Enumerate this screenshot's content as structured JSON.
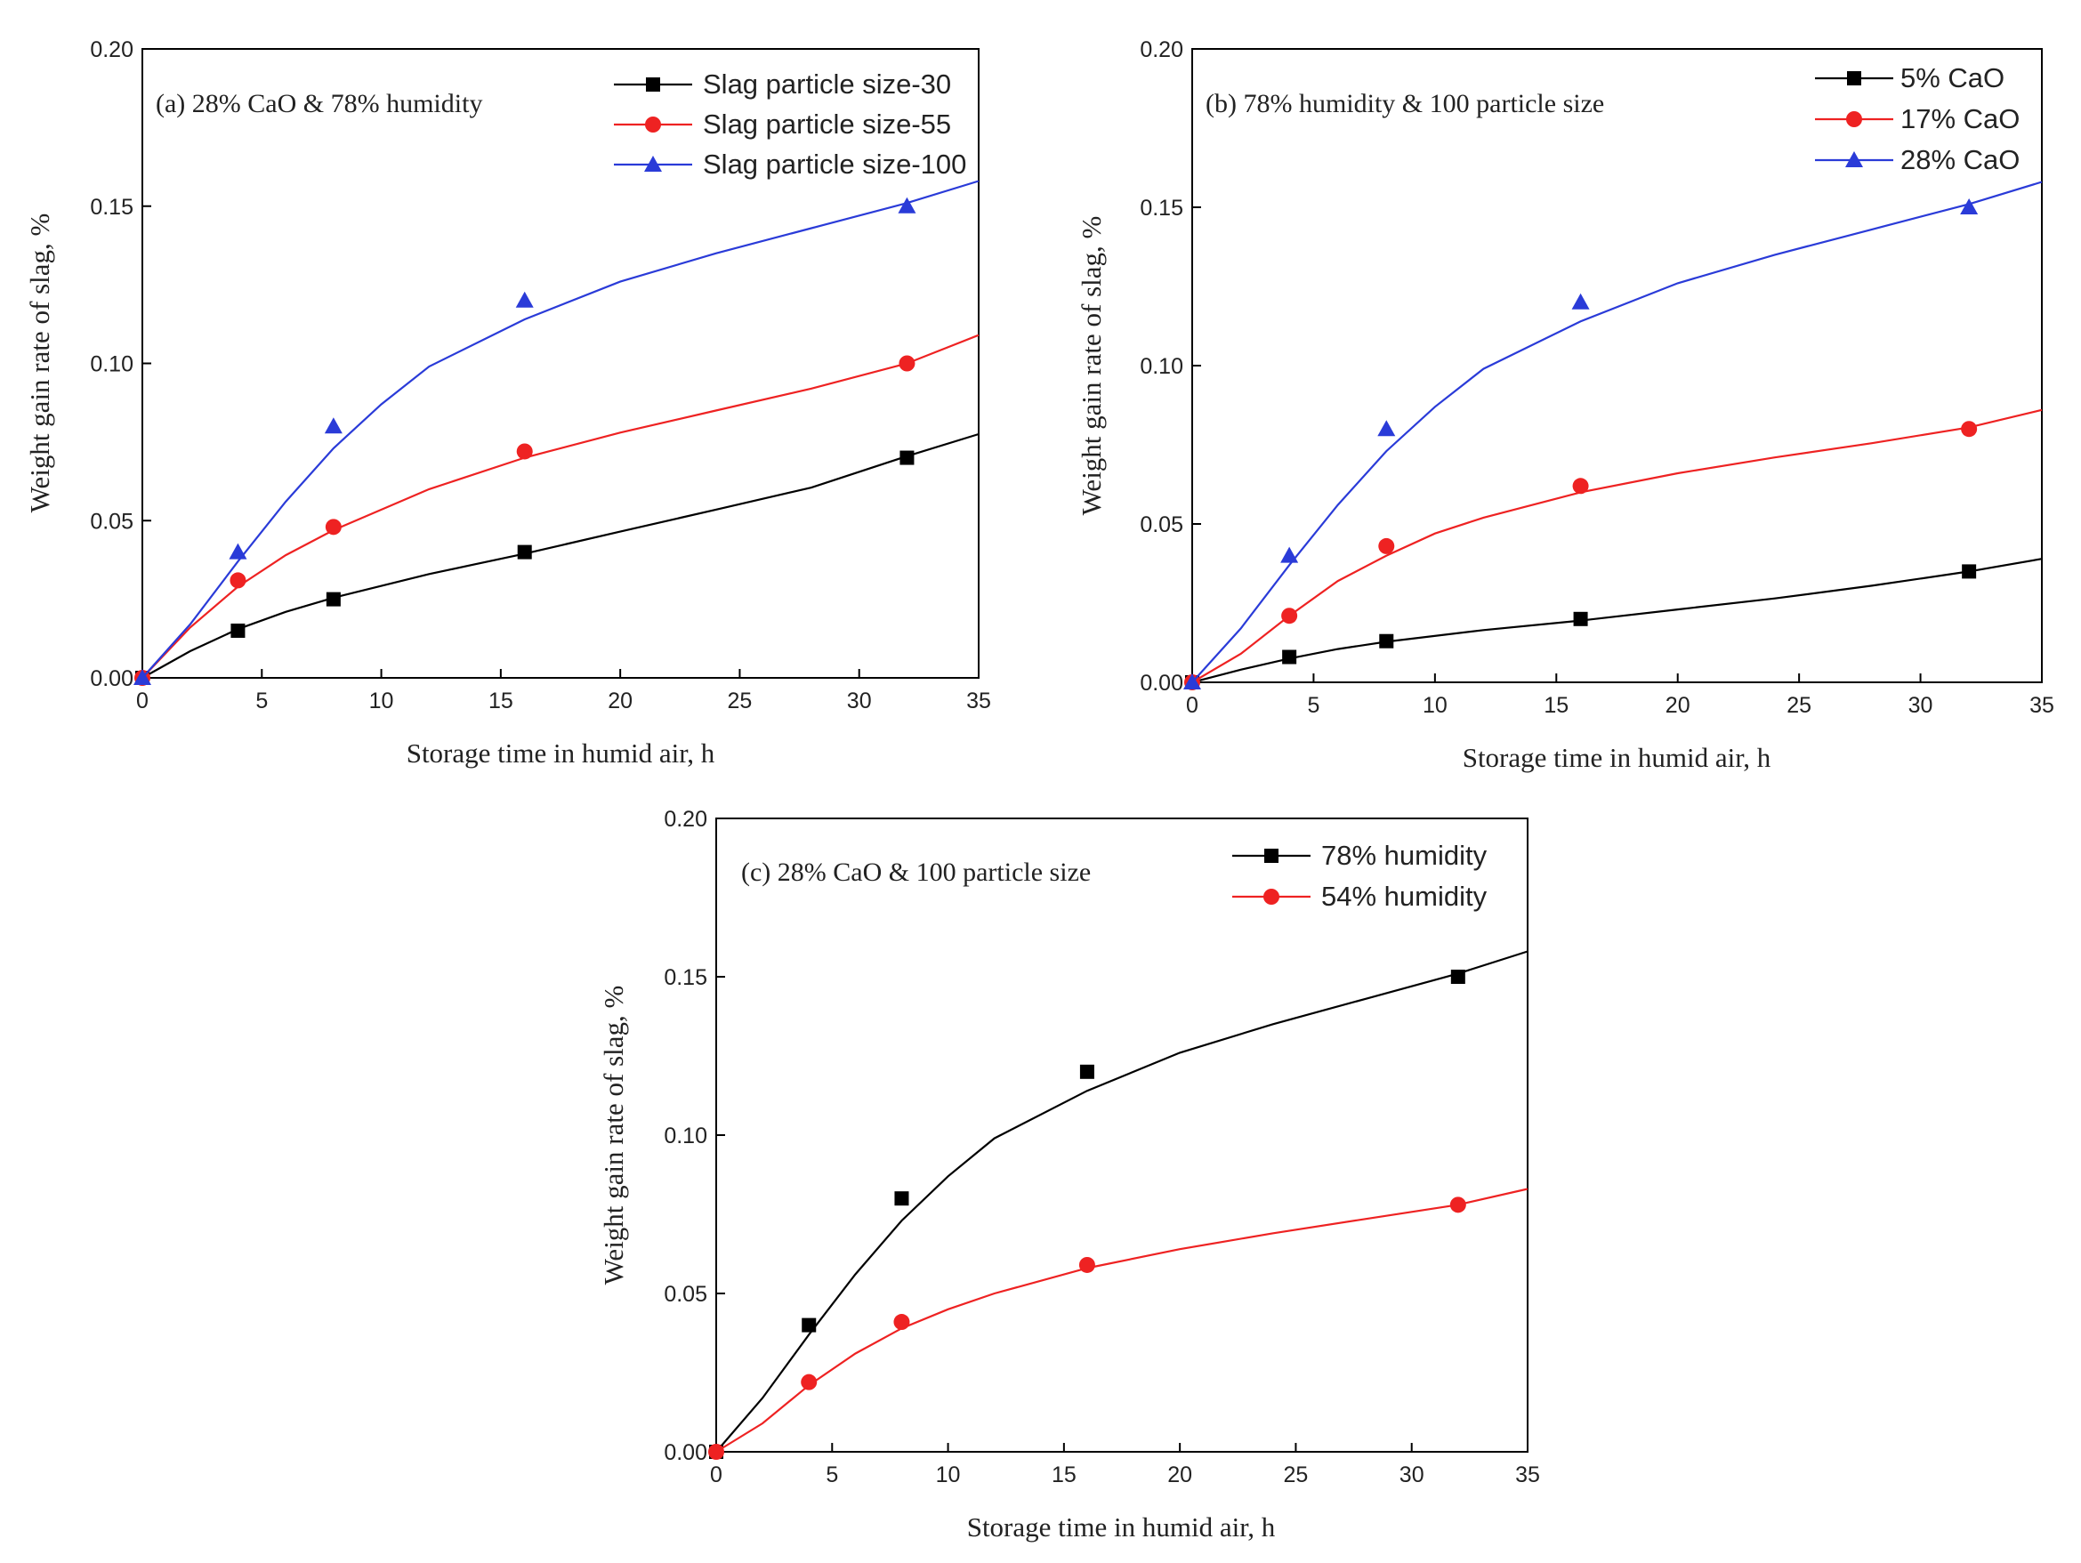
{
  "chart_data": [
    {
      "id": "a",
      "type": "line",
      "title": "(a) 28% CaO & 78% humidity",
      "xlabel": "Storage time in humid air, h",
      "ylabel": "Weight gain rate of slag, %",
      "xlim": [
        0,
        35
      ],
      "ylim": [
        0,
        0.2
      ],
      "xticks": [
        0,
        5,
        10,
        15,
        20,
        25,
        30,
        35
      ],
      "yticks": [
        0,
        0.05,
        0.1,
        0.15,
        0.2
      ],
      "x_tick_labels": [
        "0",
        "5",
        "10",
        "15",
        "20",
        "25",
        "30",
        "35"
      ],
      "y_tick_labels": [
        "0.00",
        "0.05",
        "0.10",
        "0.15",
        "0.20"
      ],
      "legend_position": "top-right",
      "series": [
        {
          "name": "Slag particle size-30",
          "color": "#000000",
          "marker": "square",
          "x": [
            0,
            4,
            8,
            16,
            32
          ],
          "values": [
            0,
            0.015,
            0.025,
            0.04,
            0.07
          ],
          "fit": [
            [
              0,
              0
            ],
            [
              2,
              0.0085
            ],
            [
              4,
              0.0155
            ],
            [
              6,
              0.021
            ],
            [
              8,
              0.0255
            ],
            [
              12,
              0.033
            ],
            [
              16,
              0.0395
            ],
            [
              20,
              0.0465
            ],
            [
              24,
              0.0535
            ],
            [
              28,
              0.0605
            ],
            [
              32,
              0.0705
            ],
            [
              35,
              0.0775
            ]
          ]
        },
        {
          "name": "Slag particle size-55",
          "color": "#ee2222",
          "marker": "circle",
          "x": [
            0,
            4,
            8,
            16,
            32
          ],
          "values": [
            0,
            0.031,
            0.048,
            0.072,
            0.1
          ],
          "fit": [
            [
              0,
              0
            ],
            [
              2,
              0.016
            ],
            [
              4,
              0.029
            ],
            [
              6,
              0.039
            ],
            [
              8,
              0.047
            ],
            [
              12,
              0.06
            ],
            [
              16,
              0.07
            ],
            [
              20,
              0.078
            ],
            [
              24,
              0.085
            ],
            [
              28,
              0.092
            ],
            [
              32,
              0.1
            ],
            [
              35,
              0.109
            ]
          ]
        },
        {
          "name": "Slag particle size-100",
          "color": "#2a3bd8",
          "marker": "triangle",
          "x": [
            0,
            4,
            8,
            16,
            32
          ],
          "values": [
            0,
            0.04,
            0.08,
            0.12,
            0.15
          ],
          "fit": [
            [
              0,
              0
            ],
            [
              2,
              0.017
            ],
            [
              4,
              0.037
            ],
            [
              6,
              0.056
            ],
            [
              8,
              0.073
            ],
            [
              10,
              0.087
            ],
            [
              12,
              0.099
            ],
            [
              16,
              0.114
            ],
            [
              20,
              0.126
            ],
            [
              24,
              0.135
            ],
            [
              28,
              0.143
            ],
            [
              32,
              0.151
            ],
            [
              35,
              0.158
            ]
          ]
        }
      ]
    },
    {
      "id": "b",
      "type": "line",
      "title": "(b) 78% humidity & 100 particle size",
      "xlabel": "Storage time in humid air, h",
      "ylabel": "Weight gain rate of slag, %",
      "xlim": [
        0,
        35
      ],
      "ylim": [
        0,
        0.2
      ],
      "xticks": [
        0,
        5,
        10,
        15,
        20,
        25,
        30,
        35
      ],
      "yticks": [
        0,
        0.05,
        0.1,
        0.15,
        0.2
      ],
      "x_tick_labels": [
        "0",
        "5",
        "10",
        "15",
        "20",
        "25",
        "30",
        "35"
      ],
      "y_tick_labels": [
        "0.00",
        "0.05",
        "0.10",
        "0.15",
        "0.20"
      ],
      "legend_position": "top-right",
      "series": [
        {
          "name": "5% CaO",
          "color": "#000000",
          "marker": "square",
          "x": [
            0,
            4,
            8,
            16,
            32
          ],
          "values": [
            0,
            0.008,
            0.013,
            0.02,
            0.035
          ],
          "fit": [
            [
              0,
              0
            ],
            [
              2,
              0.004
            ],
            [
              4,
              0.0075
            ],
            [
              6,
              0.0105
            ],
            [
              8,
              0.0128
            ],
            [
              12,
              0.0165
            ],
            [
              16,
              0.0195
            ],
            [
              20,
              0.023
            ],
            [
              24,
              0.0265
            ],
            [
              28,
              0.0305
            ],
            [
              32,
              0.035
            ],
            [
              35,
              0.039
            ]
          ]
        },
        {
          "name": "17% CaO",
          "color": "#ee2222",
          "marker": "circle",
          "x": [
            0,
            4,
            8,
            16,
            32
          ],
          "values": [
            0,
            0.021,
            0.043,
            0.062,
            0.08
          ],
          "fit": [
            [
              0,
              0
            ],
            [
              2,
              0.009
            ],
            [
              4,
              0.021
            ],
            [
              6,
              0.032
            ],
            [
              8,
              0.04
            ],
            [
              10,
              0.047
            ],
            [
              12,
              0.052
            ],
            [
              16,
              0.06
            ],
            [
              20,
              0.066
            ],
            [
              24,
              0.071
            ],
            [
              28,
              0.0755
            ],
            [
              32,
              0.0805
            ],
            [
              35,
              0.086
            ]
          ]
        },
        {
          "name": "28% CaO",
          "color": "#2a3bd8",
          "marker": "triangle",
          "x": [
            0,
            4,
            8,
            16,
            32
          ],
          "values": [
            0,
            0.04,
            0.08,
            0.12,
            0.15
          ],
          "fit": [
            [
              0,
              0
            ],
            [
              2,
              0.017
            ],
            [
              4,
              0.037
            ],
            [
              6,
              0.056
            ],
            [
              8,
              0.073
            ],
            [
              10,
              0.087
            ],
            [
              12,
              0.099
            ],
            [
              16,
              0.114
            ],
            [
              20,
              0.126
            ],
            [
              24,
              0.135
            ],
            [
              28,
              0.143
            ],
            [
              32,
              0.151
            ],
            [
              35,
              0.158
            ]
          ]
        }
      ]
    },
    {
      "id": "c",
      "type": "line",
      "title": "(c) 28% CaO & 100 particle size",
      "xlabel": "Storage time in humid air, h",
      "ylabel": "Weight gain rate of slag, %",
      "xlim": [
        0,
        35
      ],
      "ylim": [
        0,
        0.2
      ],
      "xticks": [
        0,
        5,
        10,
        15,
        20,
        25,
        30,
        35
      ],
      "yticks": [
        0,
        0.05,
        0.1,
        0.15,
        0.2
      ],
      "x_tick_labels": [
        "0",
        "5",
        "10",
        "15",
        "20",
        "25",
        "30",
        "35"
      ],
      "y_tick_labels": [
        "0.00",
        "0.05",
        "0.10",
        "0.15",
        "0.20"
      ],
      "legend_position": "top-right",
      "series": [
        {
          "name": "78% humidity",
          "color": "#000000",
          "marker": "square",
          "x": [
            0,
            4,
            8,
            16,
            32
          ],
          "values": [
            0,
            0.04,
            0.08,
            0.12,
            0.15
          ],
          "fit": [
            [
              0,
              0
            ],
            [
              2,
              0.017
            ],
            [
              4,
              0.037
            ],
            [
              6,
              0.056
            ],
            [
              8,
              0.073
            ],
            [
              10,
              0.087
            ],
            [
              12,
              0.099
            ],
            [
              16,
              0.114
            ],
            [
              20,
              0.126
            ],
            [
              24,
              0.135
            ],
            [
              28,
              0.143
            ],
            [
              32,
              0.151
            ],
            [
              35,
              0.158
            ]
          ]
        },
        {
          "name": "54% humidity",
          "color": "#ee2222",
          "marker": "circle",
          "x": [
            0,
            4,
            8,
            16,
            32
          ],
          "values": [
            0,
            0.022,
            0.041,
            0.059,
            0.078
          ],
          "fit": [
            [
              0,
              0
            ],
            [
              2,
              0.009
            ],
            [
              4,
              0.021
            ],
            [
              6,
              0.031
            ],
            [
              8,
              0.039
            ],
            [
              10,
              0.045
            ],
            [
              12,
              0.05
            ],
            [
              16,
              0.058
            ],
            [
              20,
              0.064
            ],
            [
              24,
              0.069
            ],
            [
              28,
              0.0735
            ],
            [
              32,
              0.078
            ],
            [
              35,
              0.083
            ]
          ]
        }
      ]
    }
  ]
}
